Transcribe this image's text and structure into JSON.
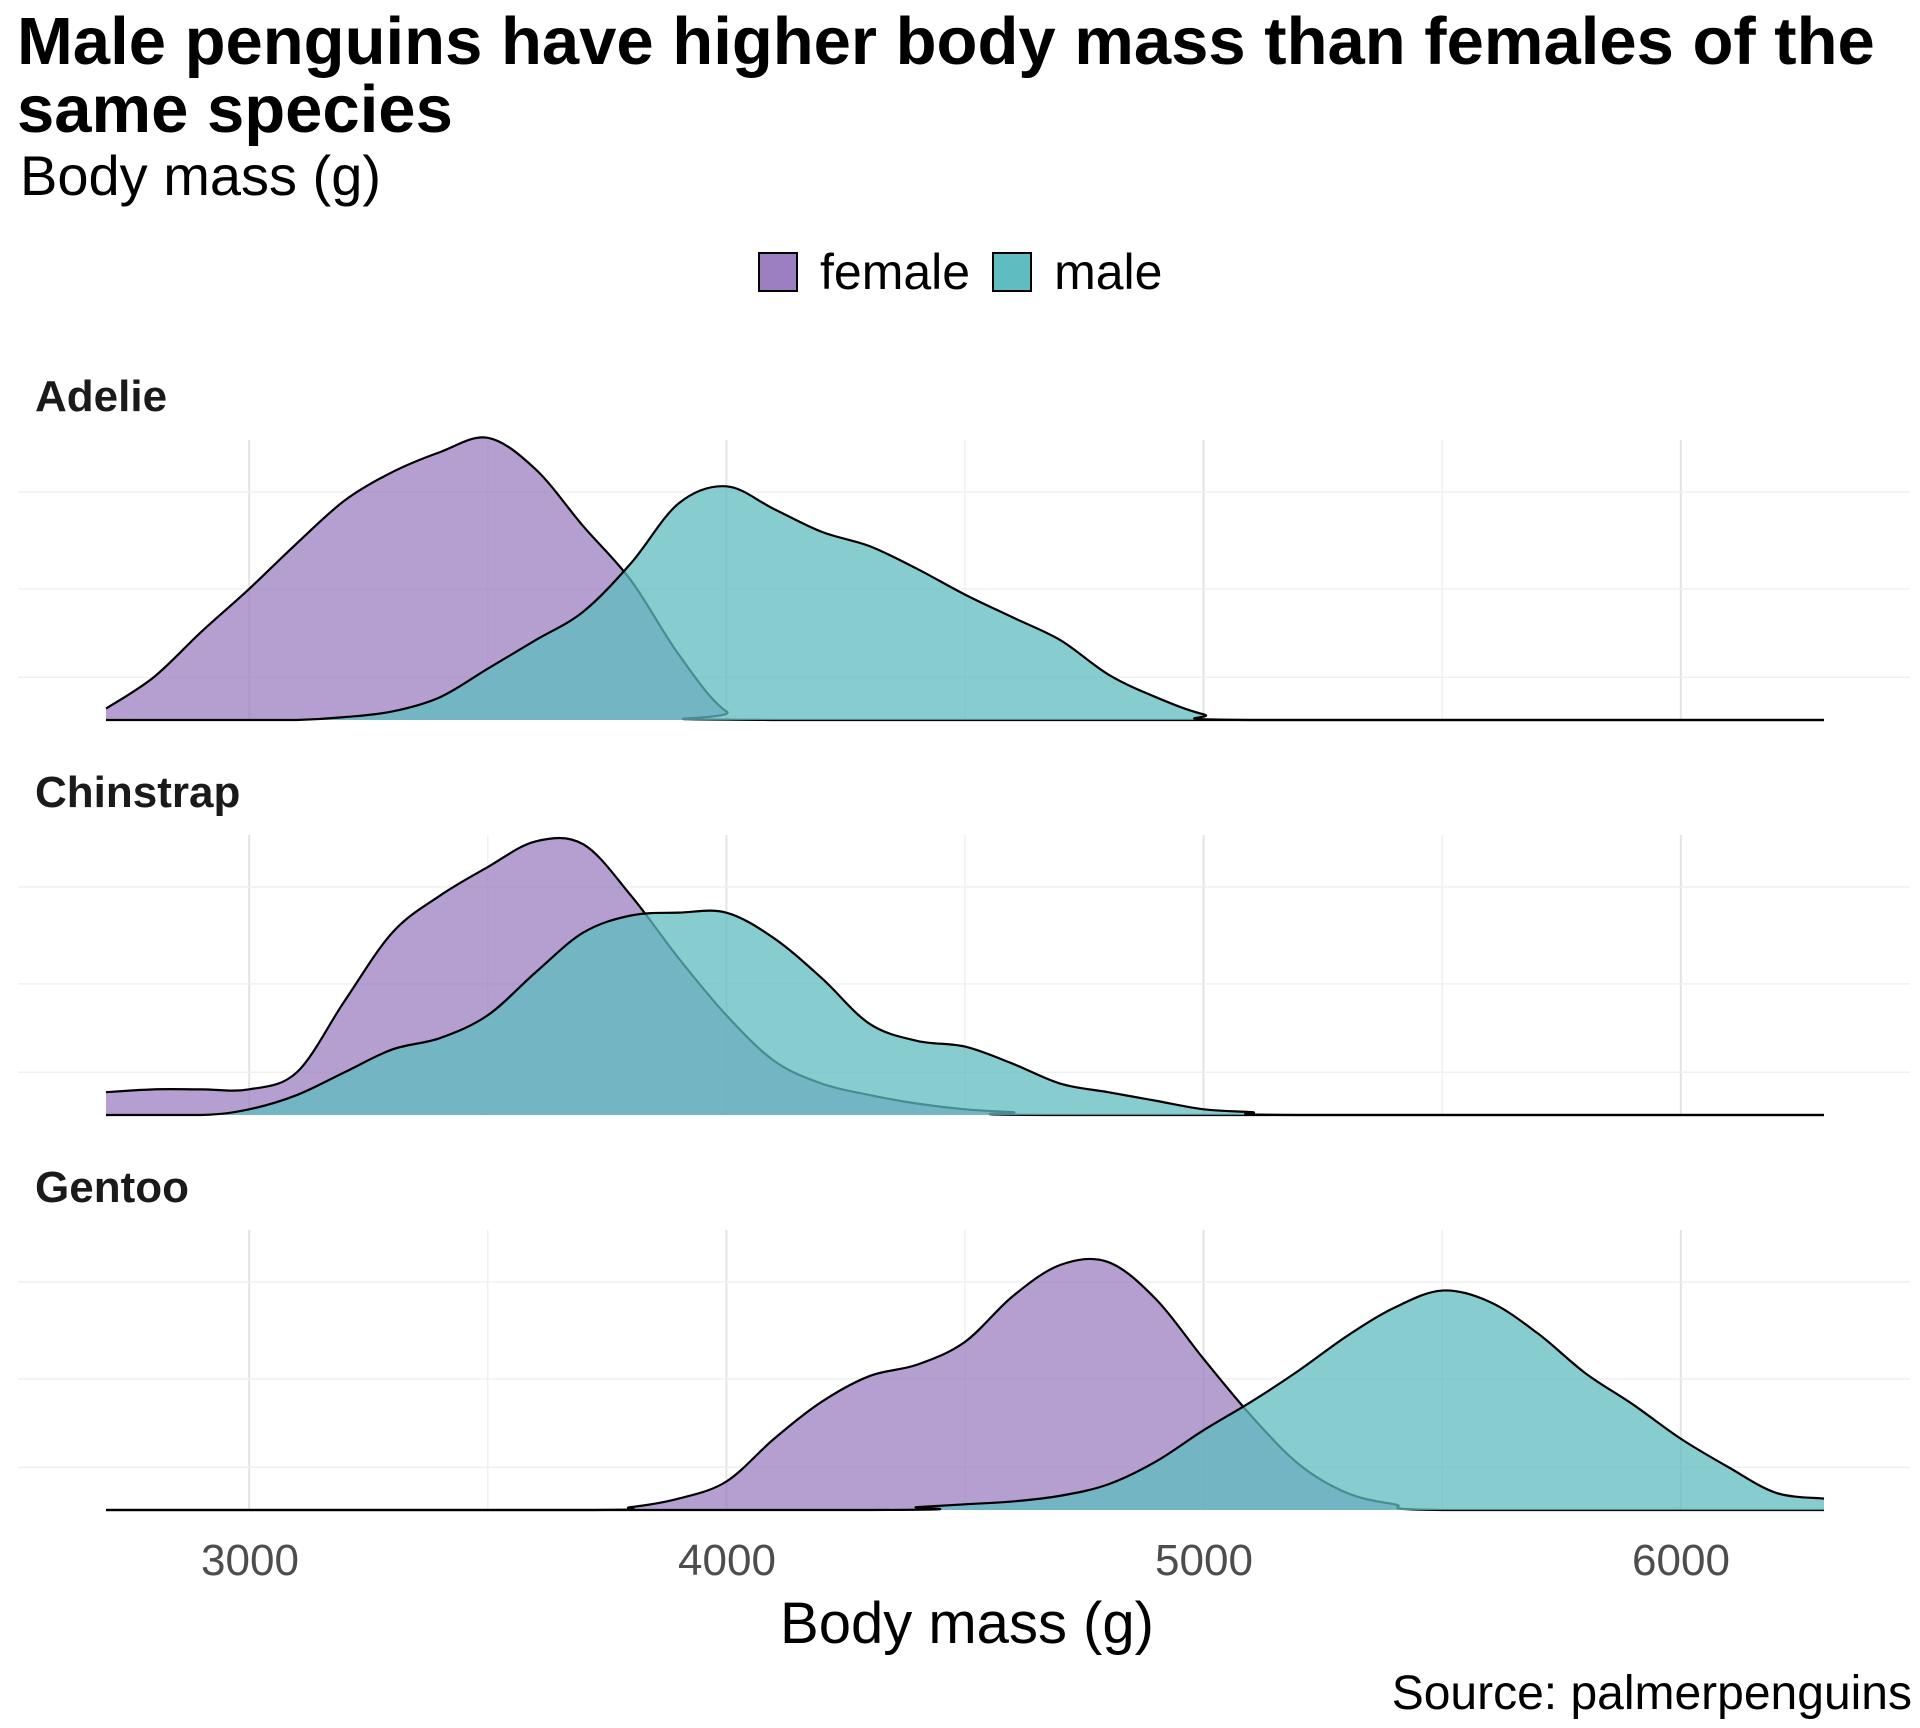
{
  "title": "Male penguins have higher body mass than females of the same species",
  "subtitle": "Body mass (g)",
  "legend": {
    "female": {
      "label": "female",
      "color": "#9b7fc0"
    },
    "male": {
      "label": "male",
      "color": "#5fbcc0"
    }
  },
  "caption": "Source: palmerpenguins",
  "x_axis": {
    "label": "Body mass (g)",
    "ticks": [
      "3000",
      "4000",
      "5000",
      "6000"
    ]
  },
  "chart_data": {
    "type": "area",
    "title": "Male penguins have higher body mass than females of the same species",
    "subtitle": "Body mass (g)",
    "xlabel": "Body mass (g)",
    "ylabel": "",
    "xlim": [
      2700,
      6300
    ],
    "xticks": [
      3000,
      4000,
      5000,
      6000
    ],
    "y_units": "relative density (panel maximum = 1)",
    "facets": [
      {
        "label": "Adelie",
        "series": [
          {
            "name": "female",
            "points": [
              [
                2700,
                0.04
              ],
              [
                2800,
                0.15
              ],
              [
                2900,
                0.31
              ],
              [
                3000,
                0.46
              ],
              [
                3100,
                0.62
              ],
              [
                3200,
                0.77
              ],
              [
                3300,
                0.87
              ],
              [
                3400,
                0.94
              ],
              [
                3500,
                0.99
              ],
              [
                3600,
                0.88
              ],
              [
                3700,
                0.68
              ],
              [
                3800,
                0.49
              ],
              [
                3900,
                0.23
              ],
              [
                4000,
                0.03
              ],
              [
                4100,
                0.0
              ],
              [
                6300,
                0.0
              ]
            ]
          },
          {
            "name": "male",
            "points": [
              [
                2700,
                0.0
              ],
              [
                3000,
                0.0
              ],
              [
                3100,
                0.0
              ],
              [
                3200,
                0.01
              ],
              [
                3300,
                0.03
              ],
              [
                3400,
                0.08
              ],
              [
                3500,
                0.18
              ],
              [
                3600,
                0.28
              ],
              [
                3700,
                0.38
              ],
              [
                3800,
                0.55
              ],
              [
                3900,
                0.76
              ],
              [
                4000,
                0.82
              ],
              [
                4100,
                0.74
              ],
              [
                4200,
                0.66
              ],
              [
                4300,
                0.61
              ],
              [
                4400,
                0.53
              ],
              [
                4500,
                0.44
              ],
              [
                4600,
                0.36
              ],
              [
                4700,
                0.28
              ],
              [
                4800,
                0.16
              ],
              [
                4900,
                0.08
              ],
              [
                5000,
                0.02
              ],
              [
                5100,
                0.0
              ],
              [
                6300,
                0.0
              ]
            ]
          }
        ]
      },
      {
        "label": "Chinstrap",
        "series": [
          {
            "name": "female",
            "points": [
              [
                2700,
                0.08
              ],
              [
                2800,
                0.09
              ],
              [
                2900,
                0.09
              ],
              [
                3000,
                0.09
              ],
              [
                3100,
                0.15
              ],
              [
                3200,
                0.4
              ],
              [
                3300,
                0.64
              ],
              [
                3400,
                0.77
              ],
              [
                3500,
                0.87
              ],
              [
                3600,
                0.96
              ],
              [
                3700,
                0.95
              ],
              [
                3800,
                0.77
              ],
              [
                3900,
                0.55
              ],
              [
                4000,
                0.35
              ],
              [
                4100,
                0.19
              ],
              [
                4200,
                0.11
              ],
              [
                4300,
                0.07
              ],
              [
                4400,
                0.04
              ],
              [
                4500,
                0.02
              ],
              [
                4600,
                0.01
              ],
              [
                4700,
                0.0
              ],
              [
                6300,
                0.0
              ]
            ]
          },
          {
            "name": "male",
            "points": [
              [
                2700,
                0.0
              ],
              [
                2900,
                0.0
              ],
              [
                3000,
                0.02
              ],
              [
                3100,
                0.07
              ],
              [
                3200,
                0.15
              ],
              [
                3300,
                0.23
              ],
              [
                3400,
                0.27
              ],
              [
                3500,
                0.35
              ],
              [
                3600,
                0.5
              ],
              [
                3700,
                0.64
              ],
              [
                3800,
                0.7
              ],
              [
                3900,
                0.71
              ],
              [
                4000,
                0.71
              ],
              [
                4100,
                0.62
              ],
              [
                4200,
                0.48
              ],
              [
                4300,
                0.32
              ],
              [
                4400,
                0.26
              ],
              [
                4500,
                0.24
              ],
              [
                4600,
                0.18
              ],
              [
                4700,
                0.11
              ],
              [
                4800,
                0.08
              ],
              [
                4900,
                0.05
              ],
              [
                5000,
                0.02
              ],
              [
                5100,
                0.01
              ],
              [
                5200,
                0.0
              ],
              [
                6300,
                0.0
              ]
            ]
          }
        ]
      },
      {
        "label": "Gentoo",
        "series": [
          {
            "name": "female",
            "points": [
              [
                2700,
                0.0
              ],
              [
                3700,
                0.0
              ],
              [
                3800,
                0.01
              ],
              [
                3900,
                0.04
              ],
              [
                4000,
                0.1
              ],
              [
                4100,
                0.25
              ],
              [
                4200,
                0.38
              ],
              [
                4300,
                0.47
              ],
              [
                4400,
                0.51
              ],
              [
                4500,
                0.59
              ],
              [
                4600,
                0.75
              ],
              [
                4700,
                0.86
              ],
              [
                4800,
                0.87
              ],
              [
                4900,
                0.74
              ],
              [
                5000,
                0.53
              ],
              [
                5100,
                0.33
              ],
              [
                5200,
                0.16
              ],
              [
                5300,
                0.06
              ],
              [
                5400,
                0.02
              ],
              [
                5500,
                0.0
              ],
              [
                6300,
                0.0
              ]
            ]
          },
          {
            "name": "male",
            "points": [
              [
                2700,
                0.0
              ],
              [
                4300,
                0.0
              ],
              [
                4400,
                0.01
              ],
              [
                4500,
                0.02
              ],
              [
                4600,
                0.03
              ],
              [
                4700,
                0.05
              ],
              [
                4800,
                0.09
              ],
              [
                4900,
                0.17
              ],
              [
                5000,
                0.28
              ],
              [
                5100,
                0.38
              ],
              [
                5200,
                0.49
              ],
              [
                5300,
                0.61
              ],
              [
                5400,
                0.71
              ],
              [
                5500,
                0.77
              ],
              [
                5600,
                0.73
              ],
              [
                5700,
                0.62
              ],
              [
                5800,
                0.48
              ],
              [
                5900,
                0.37
              ],
              [
                6000,
                0.25
              ],
              [
                6100,
                0.15
              ],
              [
                6200,
                0.06
              ],
              [
                6300,
                0.04
              ]
            ]
          }
        ]
      }
    ]
  }
}
